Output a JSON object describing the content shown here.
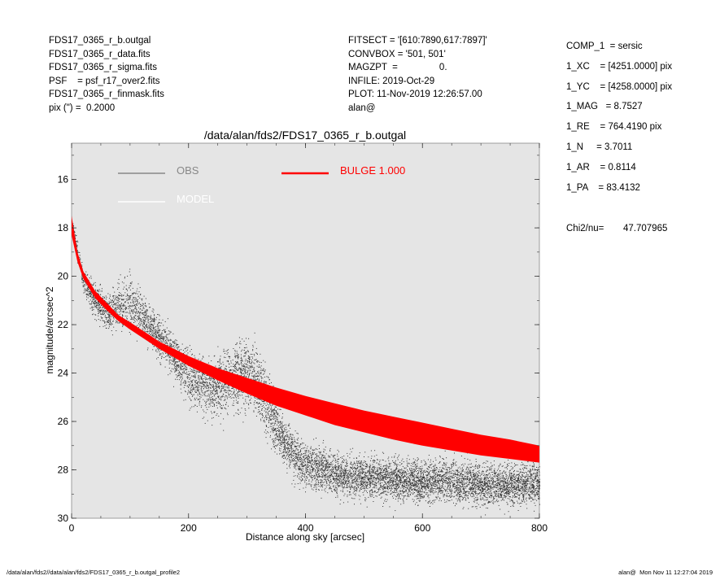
{
  "header_left": [
    "FDS17_0365_r_b.outgal",
    "FDS17_0365_r_data.fits",
    "FDS17_0365_r_sigma.fits",
    "PSF    = psf_r17_over2.fits",
    "FDS17_0365_r_finmask.fits",
    "pix (\") =  0.2000"
  ],
  "header_middle": [
    "FITSECT = '[610:7890,617:7897]'",
    "CONVBOX = '501, 501'",
    "MAGZPT  =                0.",
    "INFILE: 2019-Oct-29",
    "PLOT: 11-Nov-2019 12:26:57.00",
    "alan@"
  ],
  "params": [
    "COMP_1  = sersic",
    "1_XC    = [4251.0000] pix",
    "1_YC    = [4258.0000] pix",
    "1_MAG   = 8.7527",
    "1_RE    = 764.4190 pix",
    "1_N     = 3.7011",
    "1_AR    = 0.8114",
    "1_PA    = 83.4132"
  ],
  "chi2_label": "Chi2/nu=",
  "chi2_value": "47.707965",
  "footer_left": "/data/alan/fds2//data/alan/fds2/FDS17_0365_r_b.outgal_profile2",
  "footer_right": "alan@  Mon Nov 11 12:27:04 2019",
  "colors": {
    "plot_bg": "#e5e5e5",
    "obs": "#333333",
    "obs_legend": "#888888",
    "model": "#ffffff",
    "bulge": "#ff0000"
  },
  "chart_data": {
    "type": "scatter",
    "title": "/data/alan/fds2/FDS17_0365_r_b.outgal",
    "xlabel": "Distance along sky [arcsec]",
    "ylabel": "magnitude/arcsec^2",
    "xlim": [
      0,
      800
    ],
    "ylim": [
      30,
      14.5
    ],
    "y_inverted": true,
    "xticks": [
      "0",
      "200",
      "400",
      "600",
      "800"
    ],
    "yticks": [
      "16",
      "18",
      "20",
      "22",
      "24",
      "26",
      "28",
      "30"
    ],
    "legend": [
      {
        "label": "OBS",
        "color": "#888888"
      },
      {
        "label": "MODEL",
        "color": "#ffffff"
      },
      {
        "label": "BULGE  1.000",
        "color": "#ff0000"
      }
    ],
    "series": [
      {
        "name": "BULGE  1.000",
        "kind": "band",
        "x": [
          0,
          10,
          20,
          40,
          60,
          80,
          100,
          150,
          200,
          250,
          300,
          350,
          400,
          450,
          500,
          550,
          600,
          650,
          700,
          750,
          800
        ],
        "y_upper": [
          17.5,
          19.0,
          19.8,
          20.6,
          21.1,
          21.6,
          21.9,
          22.7,
          23.3,
          23.8,
          24.2,
          24.6,
          24.95,
          25.25,
          25.55,
          25.8,
          26.05,
          26.3,
          26.55,
          26.75,
          27.0
        ],
        "y_lower": [
          18.3,
          19.4,
          20.1,
          20.9,
          21.4,
          21.85,
          22.2,
          23.0,
          23.7,
          24.3,
          24.85,
          25.35,
          25.75,
          26.15,
          26.45,
          26.75,
          27.0,
          27.2,
          27.4,
          27.55,
          27.7
        ]
      },
      {
        "name": "OBS",
        "kind": "points",
        "x": [
          0,
          20,
          40,
          60,
          80,
          100,
          120,
          150,
          180,
          200,
          230,
          260,
          290,
          310,
          330,
          350,
          380,
          400,
          450,
          500,
          550,
          600,
          650,
          700,
          750,
          800
        ],
        "y": [
          17.8,
          20.2,
          21.0,
          21.5,
          21.3,
          21.1,
          21.6,
          22.5,
          23.5,
          24.1,
          24.6,
          24.4,
          24.0,
          24.1,
          25.0,
          26.3,
          27.4,
          27.8,
          28.2,
          28.3,
          28.4,
          28.5,
          28.5,
          28.6,
          28.6,
          28.6
        ],
        "scatter": [
          0.3,
          0.5,
          0.6,
          0.7,
          0.9,
          1.0,
          0.9,
          0.8,
          0.9,
          1.0,
          1.1,
          1.2,
          1.3,
          1.3,
          1.2,
          1.0,
          0.9,
          0.9,
          0.8,
          0.8,
          0.8,
          0.8,
          0.8,
          0.8,
          0.8,
          0.8
        ]
      }
    ]
  }
}
